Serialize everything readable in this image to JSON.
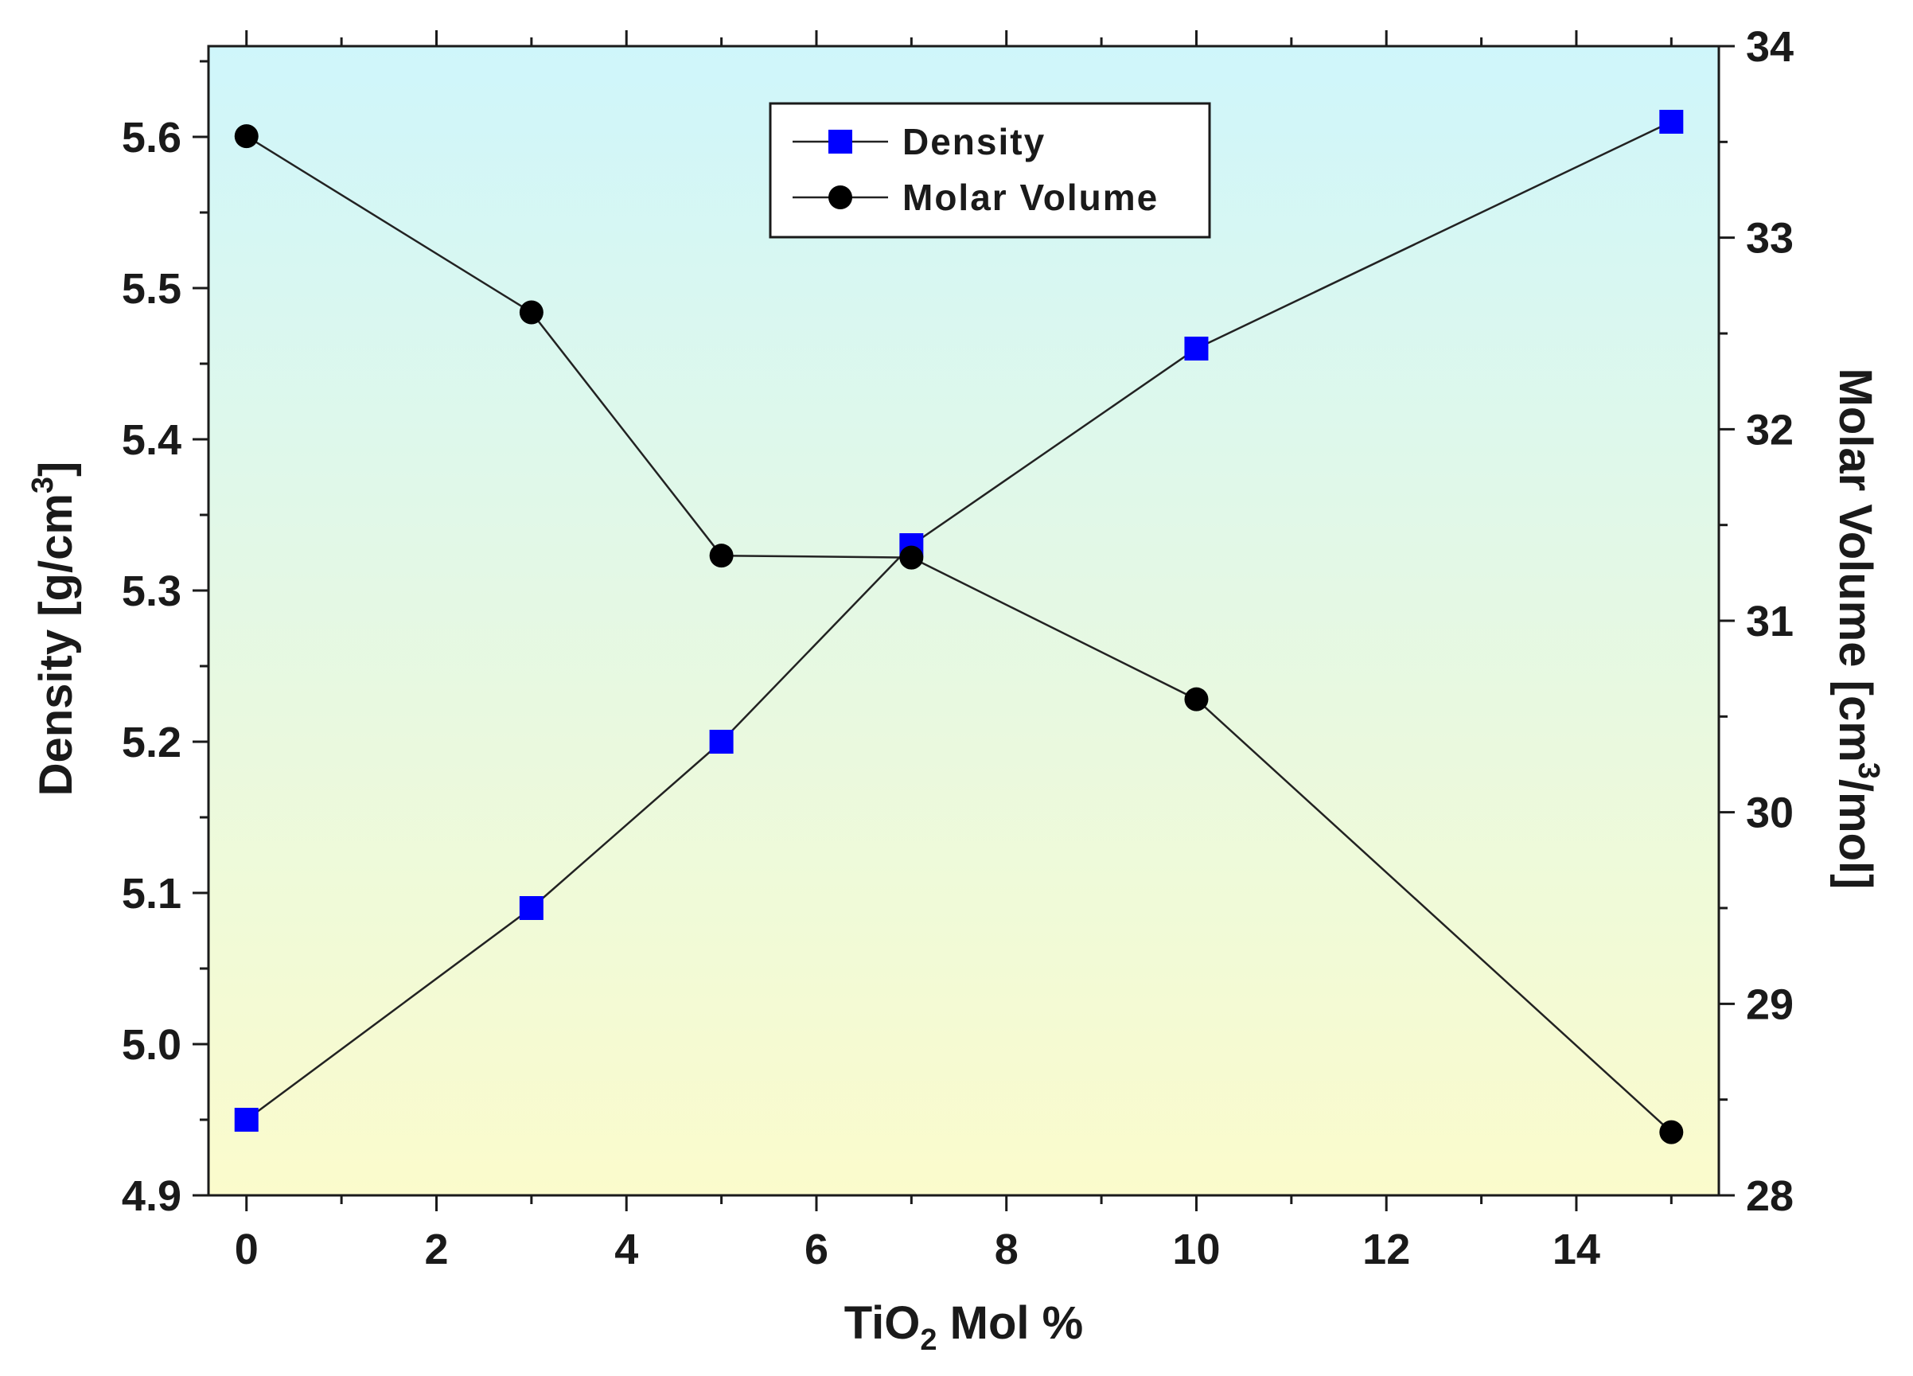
{
  "chart_data": {
    "type": "line",
    "title": "",
    "x": [
      0,
      3,
      5,
      7,
      10,
      15
    ],
    "xlim": [
      -0.4,
      15.5
    ],
    "xticks": [
      0,
      2,
      4,
      6,
      8,
      10,
      12,
      14
    ],
    "xtick_labels": [
      "0",
      "2",
      "4",
      "6",
      "8",
      "10",
      "12",
      "14"
    ],
    "xlabel": {
      "main": "TiO",
      "sub": "2",
      "rest": " Mol %"
    },
    "y_left": {
      "label": {
        "main": "Density [g/cm",
        "sup": "3",
        "rest": "]"
      },
      "lim": [
        4.9,
        5.66
      ],
      "ticks": [
        4.9,
        5.0,
        5.1,
        5.2,
        5.3,
        5.4,
        5.5,
        5.6
      ],
      "tick_labels": [
        "4.9",
        "5.0",
        "5.1",
        "5.2",
        "5.3",
        "5.4",
        "5.5",
        "5.6"
      ]
    },
    "y_right": {
      "label": {
        "main": "Molar Volume [cm",
        "sup": "3",
        "rest": "/mol]"
      },
      "lim": [
        28,
        34
      ],
      "ticks": [
        28,
        29,
        30,
        31,
        32,
        33,
        34
      ],
      "tick_labels": [
        "28",
        "29",
        "30",
        "31",
        "32",
        "33",
        "34"
      ]
    },
    "series": [
      {
        "name": "Density",
        "axis": "left",
        "marker": "square",
        "color": "#0000ff",
        "values": [
          4.95,
          5.09,
          5.2,
          5.33,
          5.46,
          5.61
        ]
      },
      {
        "name": "Molar Volume",
        "axis": "right",
        "marker": "circle",
        "color": "#000000",
        "values": [
          33.53,
          32.61,
          31.34,
          31.33,
          30.59,
          28.33
        ]
      }
    ],
    "legend_position": "top-center",
    "background": {
      "top": "#cff6fb",
      "bottom": "#fbfbcc"
    },
    "line_color": "#222222"
  }
}
